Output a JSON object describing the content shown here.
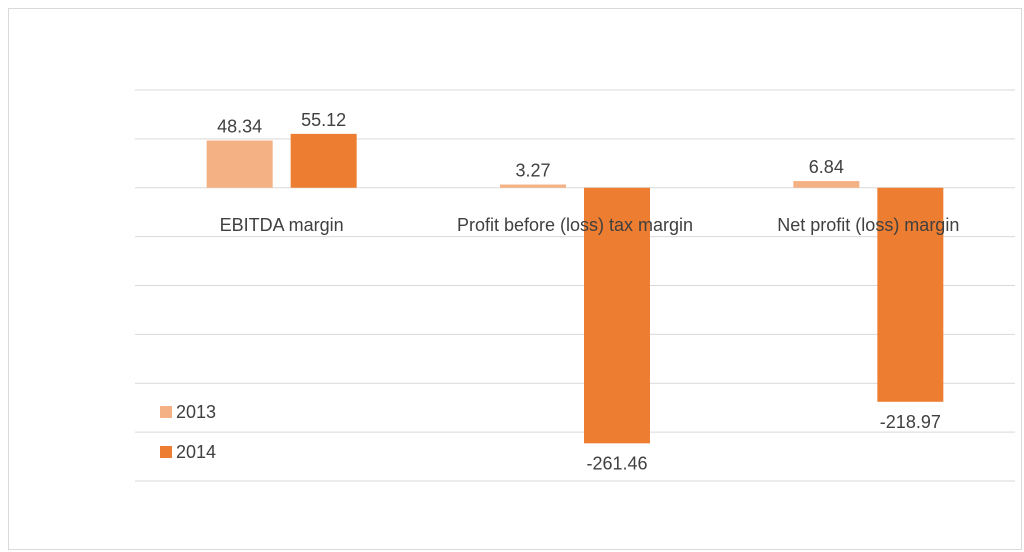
{
  "chart_data": {
    "type": "bar",
    "categories": [
      "EBITDA margin",
      "Profit before (loss) tax margin",
      "Net profit (loss) margin"
    ],
    "series": [
      {
        "name": "2013",
        "color": "#f4b183",
        "values": [
          48.34,
          3.27,
          6.84
        ]
      },
      {
        "name": "2014",
        "color": "#ed7d31",
        "values": [
          55.12,
          -261.46,
          -218.97
        ]
      }
    ],
    "ylim": [
      -300,
      100
    ],
    "yticks": [
      -300,
      -250,
      -200,
      -150,
      -100,
      -50,
      0,
      50,
      100
    ],
    "grid": true,
    "legend": "lower left"
  }
}
